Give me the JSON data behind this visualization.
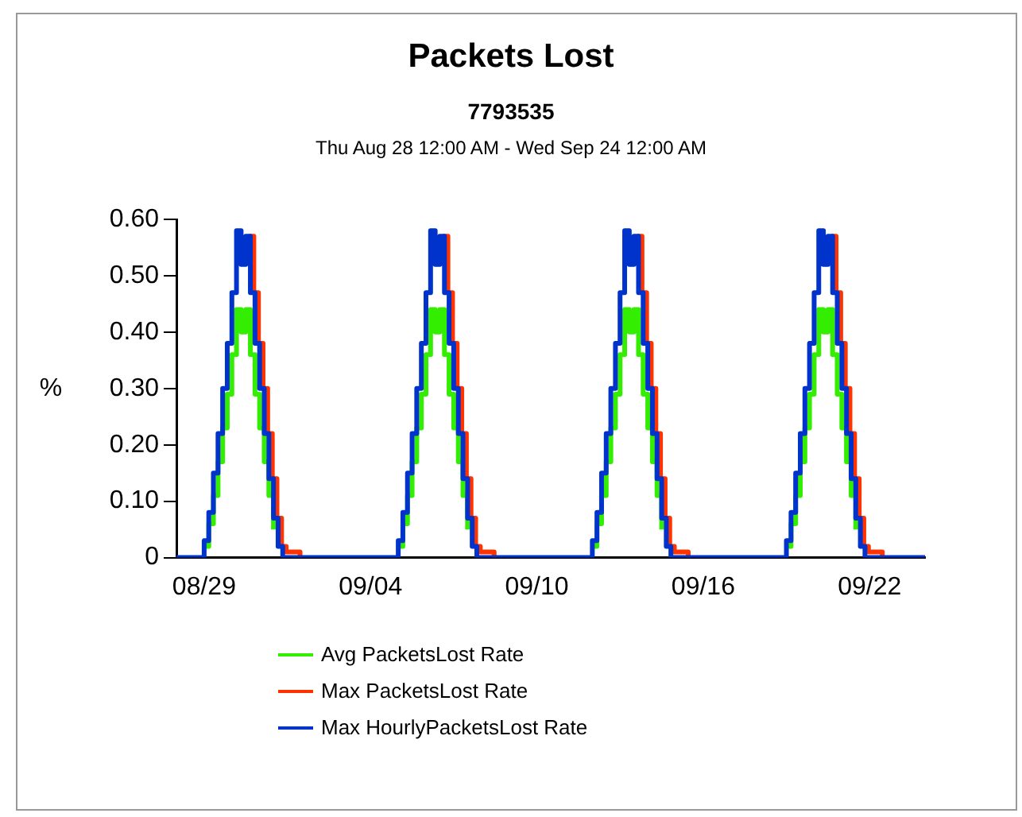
{
  "chart_data": {
    "type": "step",
    "title": "Packets Lost",
    "subtitle": "7793535\nThu Aug 28 12:00 AM - Wed Sep 24 12:00 AM",
    "ylabel": "%",
    "x": [
      "--08-28T00:00",
      "--08-29T00:00",
      "--08-29T04:00",
      "--08-29T08:00",
      "--08-29T12:00",
      "--08-29T16:00",
      "--08-29T20:00",
      "--08-30T00:00",
      "--08-30T04:00",
      "--08-30T08:00",
      "--08-30T12:00",
      "--08-30T16:00",
      "--08-30T20:00",
      "--08-31T00:00",
      "--08-31T04:00",
      "--08-31T08:00",
      "--08-31T12:00",
      "--08-31T16:00",
      "--08-31T20:00",
      "--09-01T00:00",
      "--09-01T04:00",
      "--09-05T00:00",
      "--09-05T04:00",
      "--09-05T08:00",
      "--09-05T12:00",
      "--09-05T16:00",
      "--09-05T20:00",
      "--09-06T00:00",
      "--09-06T04:00",
      "--09-06T08:00",
      "--09-06T12:00",
      "--09-06T16:00",
      "--09-06T20:00",
      "--09-07T00:00",
      "--09-07T04:00",
      "--09-07T08:00",
      "--09-07T12:00",
      "--09-07T16:00",
      "--09-07T20:00",
      "--09-08T00:00",
      "--09-08T04:00",
      "--09-12T00:00",
      "--09-12T04:00",
      "--09-12T08:00",
      "--09-12T12:00",
      "--09-12T16:00",
      "--09-12T20:00",
      "--09-13T00:00",
      "--09-13T04:00",
      "--09-13T08:00",
      "--09-13T12:00",
      "--09-13T16:00",
      "--09-13T20:00",
      "--09-14T00:00",
      "--09-14T04:00",
      "--09-14T08:00",
      "--09-14T12:00",
      "--09-14T16:00",
      "--09-14T20:00",
      "--09-15T00:00",
      "--09-15T04:00",
      "--09-19T00:00",
      "--09-19T04:00",
      "--09-19T08:00",
      "--09-19T12:00",
      "--09-19T16:00",
      "--09-19T20:00",
      "--09-20T00:00",
      "--09-20T04:00",
      "--09-20T08:00",
      "--09-20T12:00",
      "--09-20T16:00",
      "--09-20T20:00",
      "--09-21T00:00",
      "--09-21T04:00",
      "--09-21T08:00",
      "--09-21T12:00",
      "--09-21T16:00",
      "--09-21T20:00",
      "--09-22T00:00",
      "--09-22T04:00",
      "--09-24T00:00"
    ],
    "series": [
      {
        "name": "Avg PacketsLost Rate",
        "color": "#33ee00",
        "values": [
          null,
          0.02,
          0.06,
          0.11,
          0.17,
          0.23,
          0.29,
          0.36,
          0.44,
          0.4,
          0.44,
          0.36,
          0.29,
          0.23,
          0.17,
          0.11,
          0.05,
          null,
          null,
          null,
          null,
          0.02,
          0.06,
          0.11,
          0.17,
          0.23,
          0.29,
          0.36,
          0.44,
          0.4,
          0.44,
          0.36,
          0.29,
          0.23,
          0.17,
          0.11,
          0.05,
          null,
          null,
          null,
          null,
          0.02,
          0.06,
          0.11,
          0.17,
          0.23,
          0.29,
          0.36,
          0.44,
          0.4,
          0.44,
          0.36,
          0.29,
          0.23,
          0.17,
          0.11,
          0.05,
          null,
          null,
          null,
          null,
          0.02,
          0.06,
          0.11,
          0.17,
          0.23,
          0.29,
          0.36,
          0.44,
          0.4,
          0.44,
          0.36,
          0.29,
          0.23,
          0.17,
          0.11,
          0.05,
          null,
          null,
          null,
          null,
          null
        ]
      },
      {
        "name": "Max PacketsLost Rate",
        "color": "#ff3300",
        "x": [
          "--08-30T15:00",
          "--08-30T19:00",
          "--08-30T23:00",
          "--08-31T03:00",
          "--08-31T07:00",
          "--08-31T11:00",
          "--08-31T15:00",
          "--08-31T19:00",
          "--08-31T23:00",
          "--09-01T07:00",
          "--09-01T11:00",
          "--09-03T00:00",
          "--09-06T15:00",
          "--09-06T19:00",
          "--09-06T23:00",
          "--09-07T03:00",
          "--09-07T07:00",
          "--09-07T11:00",
          "--09-07T15:00",
          "--09-07T19:00",
          "--09-07T23:00",
          "--09-08T07:00",
          "--09-08T11:00",
          "--09-10T00:00",
          "--09-13T15:00",
          "--09-13T19:00",
          "--09-13T23:00",
          "--09-14T03:00",
          "--09-14T07:00",
          "--09-14T11:00",
          "--09-14T15:00",
          "--09-14T19:00",
          "--09-14T23:00",
          "--09-15T07:00",
          "--09-15T11:00",
          "--09-17T00:00",
          "--09-20T15:00",
          "--09-20T19:00",
          "--09-20T23:00",
          "--09-21T03:00",
          "--09-21T07:00",
          "--09-21T11:00",
          "--09-21T15:00",
          "--09-21T19:00",
          "--09-21T23:00",
          "--09-22T07:00",
          "--09-22T11:00"
        ],
        "values": [
          0.57,
          0.47,
          0.38,
          0.3,
          0.22,
          0.14,
          0.07,
          0.02,
          0.01,
          0.01,
          0,
          null,
          0.57,
          0.47,
          0.38,
          0.3,
          0.22,
          0.14,
          0.07,
          0.02,
          0.01,
          0.01,
          0,
          null,
          0.57,
          0.47,
          0.38,
          0.3,
          0.22,
          0.14,
          0.07,
          0.02,
          0.01,
          0.01,
          0,
          null,
          0.57,
          0.47,
          0.38,
          0.3,
          0.22,
          0.14,
          0.07,
          0.02,
          0.01,
          0.01,
          0
        ]
      },
      {
        "name": "Max HourlyPacketsLost Rate",
        "color": "#0033cc",
        "values": [
          0,
          0.03,
          0.08,
          0.15,
          0.22,
          0.3,
          0.38,
          0.47,
          0.58,
          0.52,
          0.57,
          0.47,
          0.38,
          0.3,
          0.22,
          0.14,
          0.07,
          0.02,
          0,
          0,
          0,
          0.03,
          0.08,
          0.15,
          0.22,
          0.3,
          0.38,
          0.47,
          0.58,
          0.52,
          0.57,
          0.47,
          0.38,
          0.3,
          0.22,
          0.14,
          0.07,
          0.02,
          0,
          0,
          0,
          0.03,
          0.08,
          0.15,
          0.22,
          0.3,
          0.38,
          0.47,
          0.58,
          0.52,
          0.57,
          0.47,
          0.38,
          0.3,
          0.22,
          0.14,
          0.07,
          0.02,
          0,
          0,
          0,
          0.03,
          0.08,
          0.15,
          0.22,
          0.3,
          0.38,
          0.47,
          0.58,
          0.52,
          0.57,
          0.47,
          0.38,
          0.3,
          0.22,
          0.14,
          0.07,
          0.02,
          0,
          0,
          0,
          0
        ]
      }
    ],
    "xlim": [
      "--08-28",
      "--09-24"
    ],
    "xticks": [
      {
        "value": "--08-29",
        "label": "08/29"
      },
      {
        "value": "--09-04",
        "label": "09/04"
      },
      {
        "value": "--09-10",
        "label": "09/10"
      },
      {
        "value": "--09-16",
        "label": "09/16"
      },
      {
        "value": "--09-22",
        "label": "09/22"
      }
    ],
    "ylim": [
      0,
      0.6
    ],
    "yticks": [
      0,
      {
        "value": 0.1,
        "label": "0.10"
      },
      {
        "value": 0.2,
        "label": "0.20"
      },
      {
        "value": 0.3,
        "label": "0.30"
      },
      {
        "value": 0.4,
        "label": "0.40"
      },
      {
        "value": 0.5,
        "label": "0.50"
      },
      {
        "value": 0.6,
        "label": "0.60"
      }
    ],
    "grid": false,
    "legend": "bottom",
    "marker": "none",
    "line_style": "solid"
  }
}
